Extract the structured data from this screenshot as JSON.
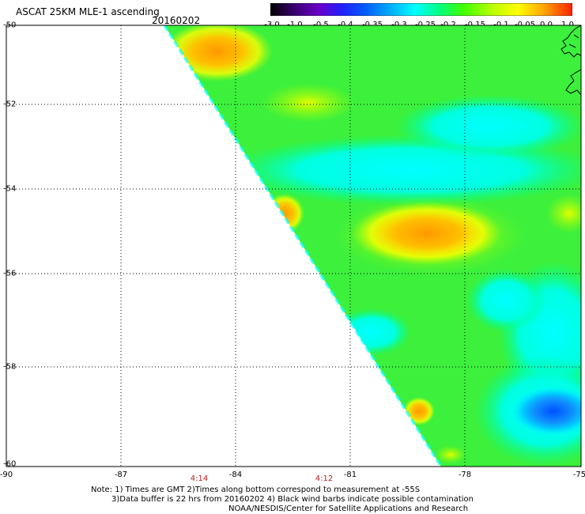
{
  "header": {
    "title": "ASCAT 25KM MLE-1 ascending",
    "date": "20160202"
  },
  "colorbar": {
    "ticks": [
      "-3.0",
      "-1.0",
      "-0.5",
      "-0.4",
      "-0.35",
      "-0.3",
      "-0.25",
      "-0.2",
      "-0.15",
      "-0.1",
      "-0.05",
      "0.0",
      "1.0"
    ],
    "colors": [
      "#000000",
      "#3a0070",
      "#6a00c8",
      "#2020ff",
      "#0060ff",
      "#00b0ff",
      "#00ffff",
      "#00ff80",
      "#40ff00",
      "#c0ff00",
      "#ffff00",
      "#ffa000",
      "#ff3000"
    ]
  },
  "axes": {
    "lon_ticks": [
      "-90",
      "-87",
      "-84",
      "-81",
      "-78",
      "-75"
    ],
    "lat_ticks": [
      "-50",
      "-52",
      "-54",
      "-56",
      "-58",
      "-60"
    ]
  },
  "times": [
    "4:14",
    "4:12"
  ],
  "notes": {
    "line1": "Note: 1) Times are GMT 2)Times along bottom correspond to measurement at -55S",
    "line2": "3)Data buffer is 22 hrs from 20160202 4) Black wind barbs indicate possible contamination",
    "line3": "NOAA/NESDIS/Center for Satellite Applications and Research"
  }
}
